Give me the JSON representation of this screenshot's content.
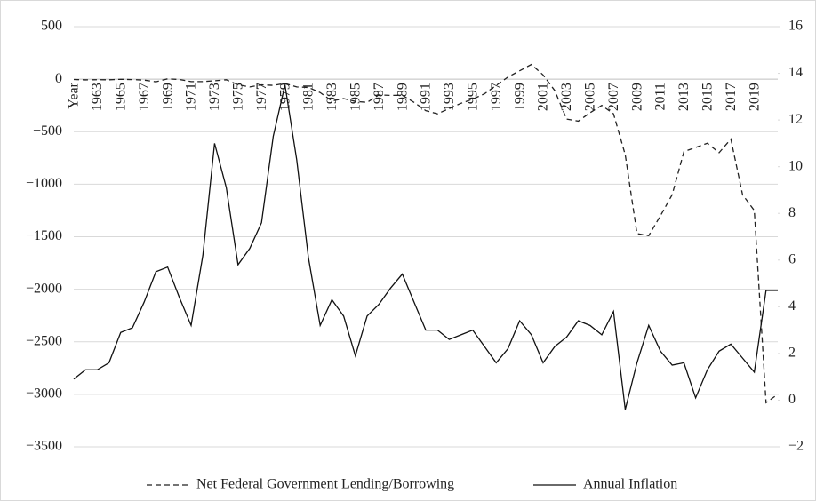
{
  "chart_data": {
    "type": "line",
    "categories": [
      "Year",
      null,
      "1963",
      null,
      "1965",
      null,
      "1967",
      null,
      "1969",
      null,
      "1971",
      null,
      "1973",
      null,
      "1975",
      null,
      "1977",
      null,
      "1979",
      null,
      "1981",
      null,
      "1983",
      null,
      "1985",
      null,
      "1987",
      null,
      "1989",
      null,
      "1991",
      null,
      "1993",
      null,
      "1995",
      null,
      "1997",
      null,
      "1999",
      null,
      "2001",
      null,
      "2003",
      null,
      "2005",
      null,
      "2007",
      null,
      "2009",
      null,
      "2011",
      null,
      "2013",
      null,
      "2015",
      null,
      "2017",
      null,
      "2019",
      null,
      null
    ],
    "series": [
      {
        "name": "Net Federal Government Lending/Borrowing",
        "color": "#222222",
        "line_style": "dashed",
        "axis": "y",
        "values": [
          -3,
          -7,
          -5,
          -6,
          -1,
          -4,
          -9,
          -25,
          3,
          -3,
          -23,
          -23,
          -15,
          -6,
          -53,
          -74,
          -54,
          -59,
          -41,
          -74,
          -79,
          -128,
          -208,
          -185,
          -212,
          -221,
          -150,
          -155,
          -153,
          -221,
          -300,
          -330,
          -280,
          -230,
          -190,
          -140,
          -60,
          20,
          80,
          140,
          40,
          -110,
          -380,
          -400,
          -320,
          -250,
          -330,
          -720,
          -1470,
          -1490,
          -1300,
          -1100,
          -690,
          -650,
          -610,
          -700,
          -570,
          -1100,
          -1250,
          -3080,
          -3000
        ]
      },
      {
        "name": "Annual Inflation",
        "color": "#111111",
        "line_style": "solid",
        "axis": "y2",
        "values": [
          0.9,
          1.3,
          1.3,
          1.6,
          2.9,
          3.1,
          4.2,
          5.5,
          5.7,
          4.4,
          3.2,
          6.2,
          11.0,
          9.1,
          5.8,
          6.5,
          7.6,
          11.3,
          13.5,
          10.3,
          6.1,
          3.2,
          4.3,
          3.6,
          1.9,
          3.6,
          4.1,
          4.8,
          5.4,
          4.2,
          3.0,
          3.0,
          2.6,
          2.8,
          3.0,
          2.3,
          1.6,
          2.2,
          3.4,
          2.8,
          1.6,
          2.3,
          2.7,
          3.4,
          3.2,
          2.8,
          3.8,
          -0.4,
          1.6,
          3.2,
          2.1,
          1.5,
          1.6,
          0.1,
          1.3,
          2.1,
          2.4,
          1.8,
          1.2,
          4.7,
          4.7
        ]
      }
    ],
    "ylim": [
      -3500,
      500
    ],
    "yticks": [
      {
        "value": -3500,
        "label": "−3500"
      },
      {
        "value": -3000,
        "label": "−3000"
      },
      {
        "value": -2500,
        "label": "−2500"
      },
      {
        "value": -2000,
        "label": "−2000"
      },
      {
        "value": -1500,
        "label": "−1500"
      },
      {
        "value": -1000,
        "label": "−1000"
      },
      {
        "value": -500,
        "label": "−500"
      },
      0,
      500
    ],
    "y2lim": [
      -2,
      16
    ],
    "y2ticks": [
      {
        "value": -2,
        "label": "−2"
      },
      0,
      2,
      4,
      6,
      8,
      10,
      12,
      14,
      16
    ],
    "grid": true,
    "legend": "bottom"
  }
}
